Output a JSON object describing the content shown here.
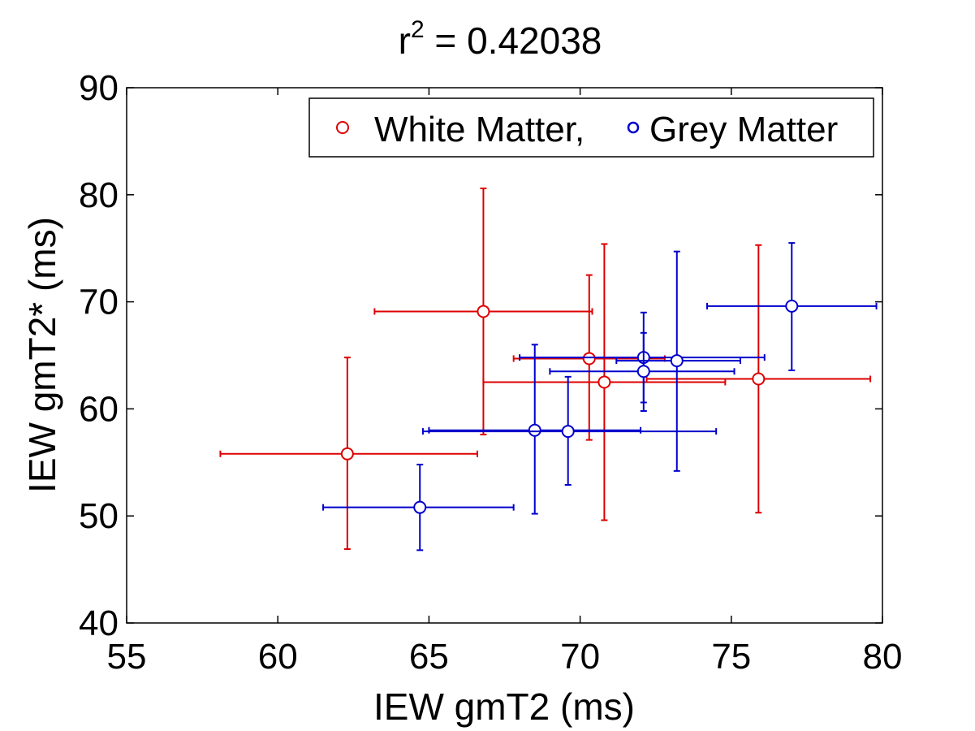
{
  "chart_data": {
    "type": "scatter",
    "title": "r² = 0.42038",
    "title_base": "r",
    "title_sup": "2",
    "title_rest": " = 0.42038",
    "xlabel": "IEW gmT2 (ms)",
    "ylabel": "IEW gmT2* (ms)",
    "xlim": [
      55,
      80
    ],
    "ylim": [
      40,
      90
    ],
    "xticks": [
      55,
      60,
      65,
      70,
      75,
      80
    ],
    "yticks": [
      40,
      50,
      60,
      70,
      80,
      90
    ],
    "grid": false,
    "legend": {
      "placement": "top-right",
      "text": "White Matter,",
      "text2": "Grey Matter"
    },
    "series": [
      {
        "name": "White Matter",
        "color": "#dd0000",
        "points": [
          {
            "x": 62.3,
            "y": 55.8,
            "xerr": [
              58.1,
              66.6
            ],
            "yerr": [
              46.9,
              64.8
            ]
          },
          {
            "x": 66.8,
            "y": 69.1,
            "xerr": [
              63.2,
              70.4
            ],
            "yerr": [
              57.6,
              80.6
            ]
          },
          {
            "x": 70.3,
            "y": 64.7,
            "xerr": [
              67.8,
              72.8
            ],
            "yerr": [
              57.1,
              72.5
            ]
          },
          {
            "x": 70.8,
            "y": 62.5,
            "xerr": [
              66.8,
              74.8
            ],
            "yerr": [
              49.6,
              75.4
            ]
          },
          {
            "x": 75.9,
            "y": 62.8,
            "xerr": [
              72.2,
              79.6
            ],
            "yerr": [
              50.3,
              75.3
            ]
          }
        ]
      },
      {
        "name": "Grey Matter",
        "color": "#0000cc",
        "points": [
          {
            "x": 64.7,
            "y": 50.8,
            "xerr": [
              61.5,
              67.8
            ],
            "yerr": [
              46.8,
              54.8
            ]
          },
          {
            "x": 68.5,
            "y": 58.0,
            "xerr": [
              65.0,
              72.0
            ],
            "yerr": [
              50.2,
              66.0
            ]
          },
          {
            "x": 69.6,
            "y": 57.9,
            "xerr": [
              64.8,
              74.5
            ],
            "yerr": [
              52.9,
              63.0
            ]
          },
          {
            "x": 72.1,
            "y": 64.8,
            "xerr": [
              68.0,
              76.1
            ],
            "yerr": [
              60.6,
              69.0
            ]
          },
          {
            "x": 72.1,
            "y": 63.5,
            "xerr": [
              69.0,
              75.1
            ],
            "yerr": [
              59.8,
              67.1
            ]
          },
          {
            "x": 73.2,
            "y": 64.5,
            "xerr": [
              71.2,
              75.3
            ],
            "yerr": [
              54.2,
              74.7
            ]
          },
          {
            "x": 77.0,
            "y": 69.6,
            "xerr": [
              74.2,
              79.8
            ],
            "yerr": [
              63.6,
              75.5
            ]
          }
        ]
      }
    ]
  }
}
